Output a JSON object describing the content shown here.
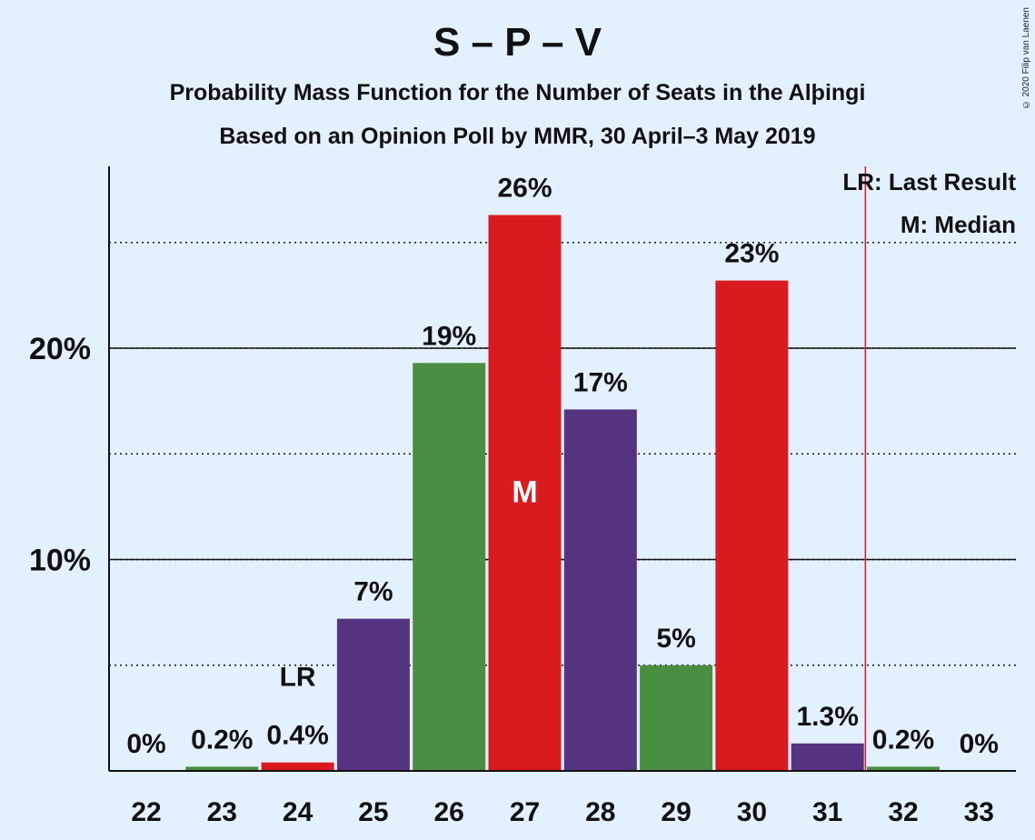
{
  "chart_data": {
    "type": "bar",
    "title": "S – P – V",
    "subtitle": "Probability Mass Function for the Number of Seats in the Alþingi",
    "subtitle2": "Based on an Opinion Poll by MMR, 30 April–3 May 2019",
    "copyright": "© 2020 Filip van Laenen",
    "categories": [
      22,
      23,
      24,
      25,
      26,
      27,
      28,
      29,
      30,
      31,
      32,
      33
    ],
    "values": [
      0,
      0.2,
      0.4,
      7.2,
      19.3,
      26.3,
      17.1,
      5.0,
      23.2,
      1.3,
      0.2,
      0
    ],
    "value_labels": [
      "0%",
      "0.2%",
      "0.4%",
      "7%",
      "19%",
      "26%",
      "17%",
      "5%",
      "23%",
      "1.3%",
      "0.2%",
      "0%"
    ],
    "bar_colors": [
      "#4a8f41",
      "#4a8f41",
      "#d91b20",
      "#563380",
      "#4a8f41",
      "#d91b20",
      "#563380",
      "#4a8f41",
      "#d91b20",
      "#563380",
      "#4a8f41",
      "#4a8f41"
    ],
    "ylim": [
      0,
      28
    ],
    "yticks": [
      10,
      20
    ],
    "ytick_labels": [
      "10%",
      "20%"
    ],
    "minor_gridlines": [
      5,
      15,
      25
    ],
    "last_result_seat": 24,
    "last_result_label": "LR",
    "median_seat": 27,
    "median_label": "M",
    "majority_line_after_seat": 31,
    "majority_line_color": "#d91b20",
    "legend": [
      "LR: Last Result",
      "M: Median"
    ],
    "legend_position": "top-right"
  }
}
